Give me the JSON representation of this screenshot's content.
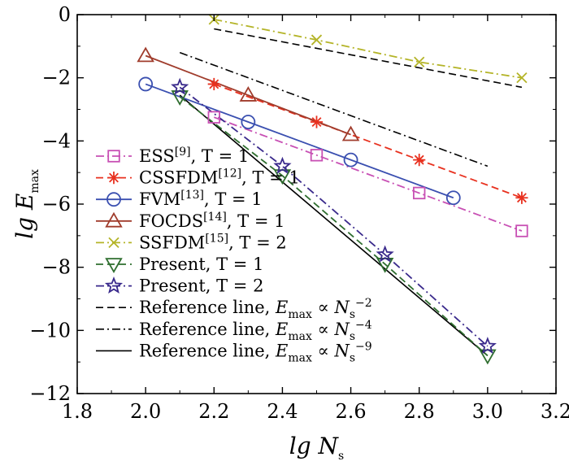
{
  "chart_data": {
    "type": "line",
    "xlabel": "lg N",
    "xlabel_sub": "s",
    "ylabel": "lg E",
    "ylabel_sub": "max",
    "xlim": [
      1.8,
      3.2
    ],
    "ylim": [
      -12,
      0
    ],
    "xticks": [
      "1.8",
      "2.0",
      "2.2",
      "2.4",
      "2.6",
      "2.8",
      "3.0",
      "3.2"
    ],
    "yticks": [
      "0",
      "-2",
      "-4",
      "-6",
      "-8",
      "-10",
      "-12"
    ],
    "grid": false,
    "legend_position": "lower-left",
    "series": [
      {
        "name": "ESS",
        "ref": "[9]",
        "cond": ", T = 1",
        "color": "#c850b4",
        "dash": "dashdot",
        "marker": "square",
        "x": [
          2.2,
          2.5,
          2.8,
          3.1
        ],
        "y": [
          -3.25,
          -4.45,
          -5.65,
          -6.85
        ]
      },
      {
        "name": "CSSFDM",
        "ref": "[12]",
        "cond": ", T = 1",
        "color": "#e8311f",
        "dash": "dashed",
        "marker": "asterisk",
        "x": [
          2.2,
          2.5,
          2.8,
          3.1
        ],
        "y": [
          -2.2,
          -3.4,
          -4.6,
          -5.8
        ]
      },
      {
        "name": "FVM",
        "ref": "[13]",
        "cond": ", T = 1",
        "color": "#3a4fb0",
        "dash": "solid",
        "marker": "circle",
        "x": [
          2.0,
          2.3,
          2.6,
          2.9
        ],
        "y": [
          -2.2,
          -3.4,
          -4.6,
          -5.8
        ]
      },
      {
        "name": "FOCDS",
        "ref": "[14]",
        "cond": ", T = 1",
        "color": "#a03c2c",
        "dash": "solid",
        "marker": "triangle-up",
        "x": [
          2.0,
          2.3,
          2.6
        ],
        "y": [
          -1.3,
          -2.55,
          -3.8
        ]
      },
      {
        "name": "SSFDM",
        "ref": "[15]",
        "cond": ", T = 2",
        "color": "#b4b428",
        "dash": "dashdot",
        "marker": "x",
        "x": [
          2.2,
          2.5,
          2.8,
          3.1
        ],
        "y": [
          -0.15,
          -0.8,
          -1.5,
          -2.0
        ]
      },
      {
        "name": "Present",
        "ref": "",
        "cond": ", T = 1",
        "color": "#2f6e2f",
        "dash": "dashed",
        "marker": "triangle-down",
        "x": [
          2.1,
          2.4,
          2.7,
          3.0
        ],
        "y": [
          -2.6,
          -5.1,
          -7.9,
          -10.8
        ]
      },
      {
        "name": "Present",
        "ref": "",
        "cond": ", T = 2",
        "color": "#3a2a8c",
        "dash": "dashdot",
        "marker": "star",
        "x": [
          2.1,
          2.4,
          2.7,
          3.0
        ],
        "y": [
          -2.3,
          -4.8,
          -7.6,
          -10.5
        ]
      }
    ],
    "reference_lines": [
      {
        "label": "Reference line, ",
        "e": "E",
        "esub": "max",
        "prop": " ∝ ",
        "n": "N",
        "nsub": "s",
        "exp": "−2",
        "dash": "dashed",
        "x": [
          2.2,
          3.1
        ],
        "y": [
          -0.45,
          -2.3
        ]
      },
      {
        "label": "Reference line, ",
        "e": "E",
        "esub": "max",
        "prop": " ∝ ",
        "n": "N",
        "nsub": "s",
        "exp": "−4",
        "dash": "dashdot",
        "x": [
          2.1,
          3.0
        ],
        "y": [
          -1.2,
          -4.8
        ]
      },
      {
        "label": "Reference line, ",
        "e": "E",
        "esub": "max",
        "prop": " ∝ ",
        "n": "N",
        "nsub": "s",
        "exp": "−9",
        "dash": "solid",
        "x": [
          2.1,
          3.0
        ],
        "y": [
          -2.55,
          -10.8
        ]
      }
    ]
  }
}
